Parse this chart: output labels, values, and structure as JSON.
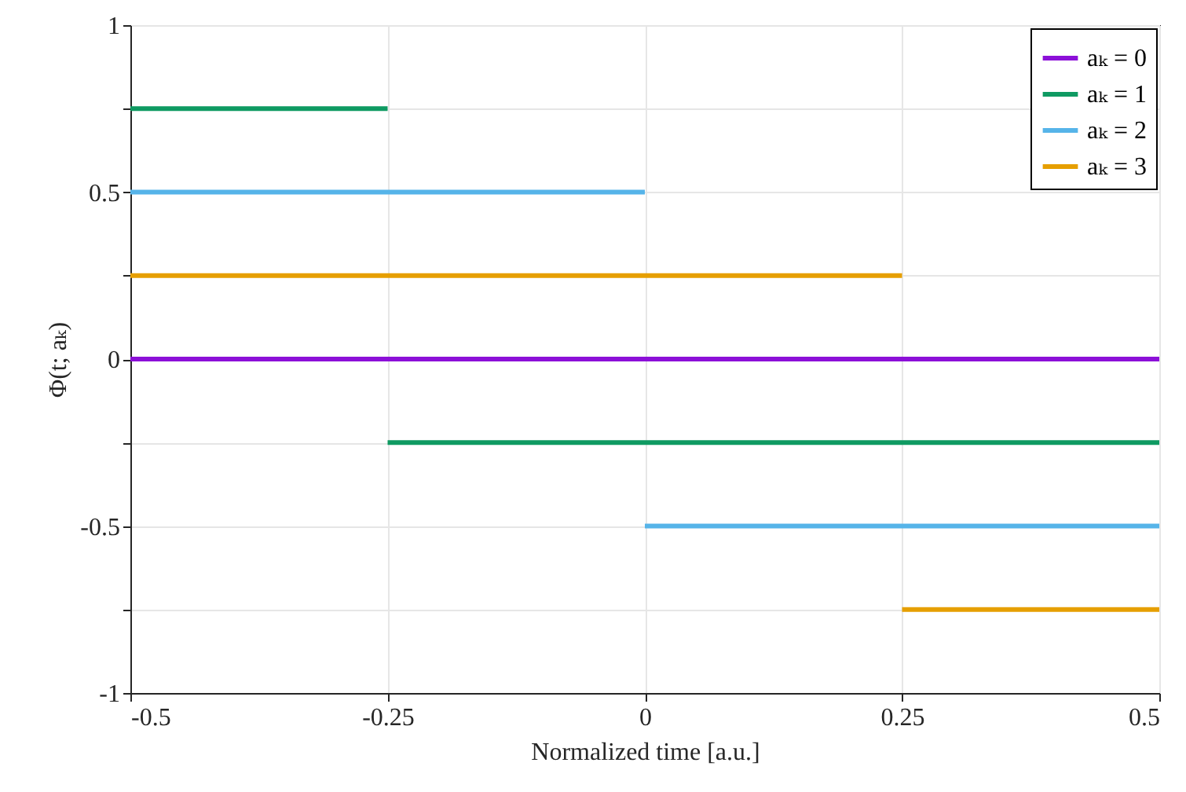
{
  "chart_data": {
    "type": "step",
    "xlabel": "Normalized time [a.u.]",
    "ylabel": "Φ(t; aₖ)",
    "xlim": [
      -0.5,
      0.5
    ],
    "xticks": [
      -0.5,
      -0.25,
      0,
      0.25,
      0.5
    ],
    "ylim": [
      -1,
      1
    ],
    "yticks": [
      -1,
      {
        "value": -0.75,
        "label": null
      },
      -0.5,
      {
        "value": -0.25,
        "label": null
      },
      0,
      {
        "value": 0.25,
        "label": null
      },
      0.5,
      {
        "value": 0.75,
        "label": null
      },
      1
    ],
    "grid": true,
    "legend": "top right",
    "marker": "none",
    "line_style": "solid",
    "series": [
      {
        "name": "aₖ = 0",
        "color": "#8c10d8",
        "x": [
          -0.5,
          0.5
        ],
        "values": [
          0,
          0
        ]
      },
      {
        "name": "aₖ = 1",
        "color": "#0f9a62",
        "x": [
          -0.5,
          -0.25,
          0.5
        ],
        "values": [
          0.75,
          -0.25,
          -0.25
        ]
      },
      {
        "name": "aₖ = 2",
        "color": "#56b4e9",
        "x": [
          -0.5,
          0,
          0.5
        ],
        "values": [
          0.5,
          -0.5,
          -0.5
        ]
      },
      {
        "name": "aₖ = 3",
        "color": "#e69f00",
        "x": [
          -0.5,
          0.25,
          0.5
        ],
        "values": [
          0.25,
          -0.75,
          -0.75
        ]
      }
    ]
  }
}
